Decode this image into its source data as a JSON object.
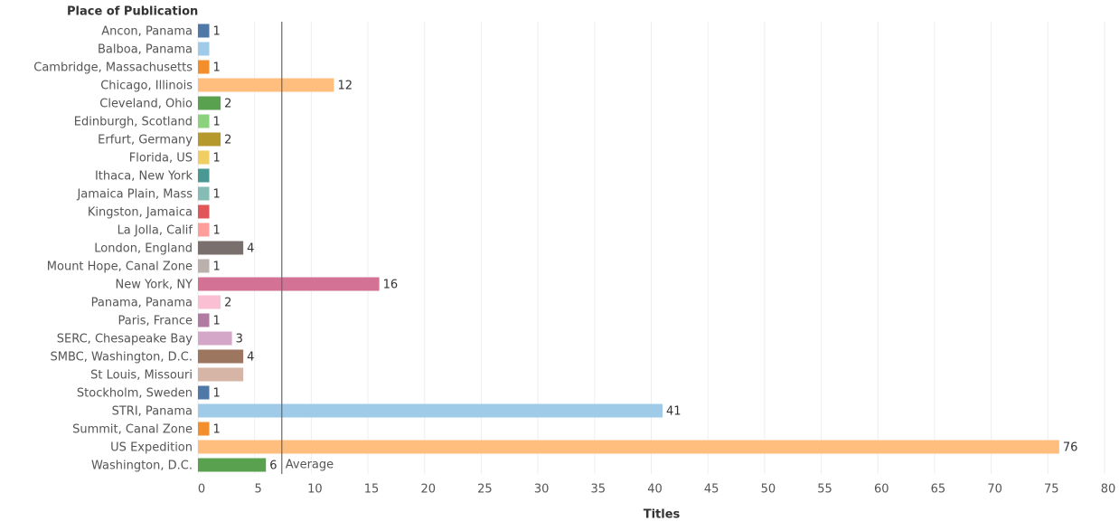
{
  "chart_data": {
    "type": "bar",
    "orientation": "horizontal",
    "y_label": "Place of Publication",
    "x_label": "Titles",
    "categories": [
      "Ancon, Panama",
      "Balboa, Panama",
      "Cambridge, Massachusetts",
      "Chicago, Illinois",
      "Cleveland, Ohio",
      "Edinburgh, Scotland",
      "Erfurt, Germany",
      "Florida, US",
      "Ithaca, New York",
      "Jamaica Plain, Mass",
      "Kingston, Jamaica",
      "La Jolla, Calif",
      "London, England",
      "Mount Hope, Canal Zone",
      "New York, NY",
      "Panama, Panama",
      "Paris, France",
      "SERC, Chesapeake Bay",
      "SMBC, Washington, D.C.",
      "St Louis, Missouri",
      "Stockholm, Sweden",
      "STRI, Panama",
      "Summit, Canal Zone",
      "US Expedition",
      "Washington, D.C."
    ],
    "values": [
      1,
      1,
      1,
      12,
      2,
      1,
      2,
      1,
      1,
      1,
      1,
      1,
      4,
      1,
      16,
      2,
      1,
      3,
      4,
      4,
      1,
      41,
      1,
      76,
      6
    ],
    "value_labels": [
      "1",
      null,
      "1",
      "12",
      "2",
      "1",
      "2",
      "1",
      null,
      "1",
      null,
      "1",
      "4",
      "1",
      "16",
      "2",
      "1",
      "3",
      "4",
      null,
      "1",
      "41",
      "1",
      "76",
      "6"
    ],
    "colors": [
      "#4e79a7",
      "#a0cbe8",
      "#f28e2b",
      "#ffbe7d",
      "#59a14f",
      "#8cd17d",
      "#b6992d",
      "#f1ce63",
      "#499894",
      "#86bcb6",
      "#e15759",
      "#ff9d9a",
      "#79706e",
      "#bab0ac",
      "#d37295",
      "#fabfd2",
      "#b07aa1",
      "#d4a6c8",
      "#9d7660",
      "#d7b5a6",
      "#4e79a7",
      "#a0cbe8",
      "#f28e2b",
      "#ffbe7d",
      "#59a14f"
    ],
    "xlim": [
      0,
      80
    ],
    "xticks": [
      0,
      5,
      10,
      15,
      20,
      25,
      30,
      35,
      40,
      45,
      50,
      55,
      60,
      65,
      70,
      75,
      80
    ],
    "grid": true,
    "reference_line": {
      "value": 7.4,
      "label": "Average"
    }
  }
}
